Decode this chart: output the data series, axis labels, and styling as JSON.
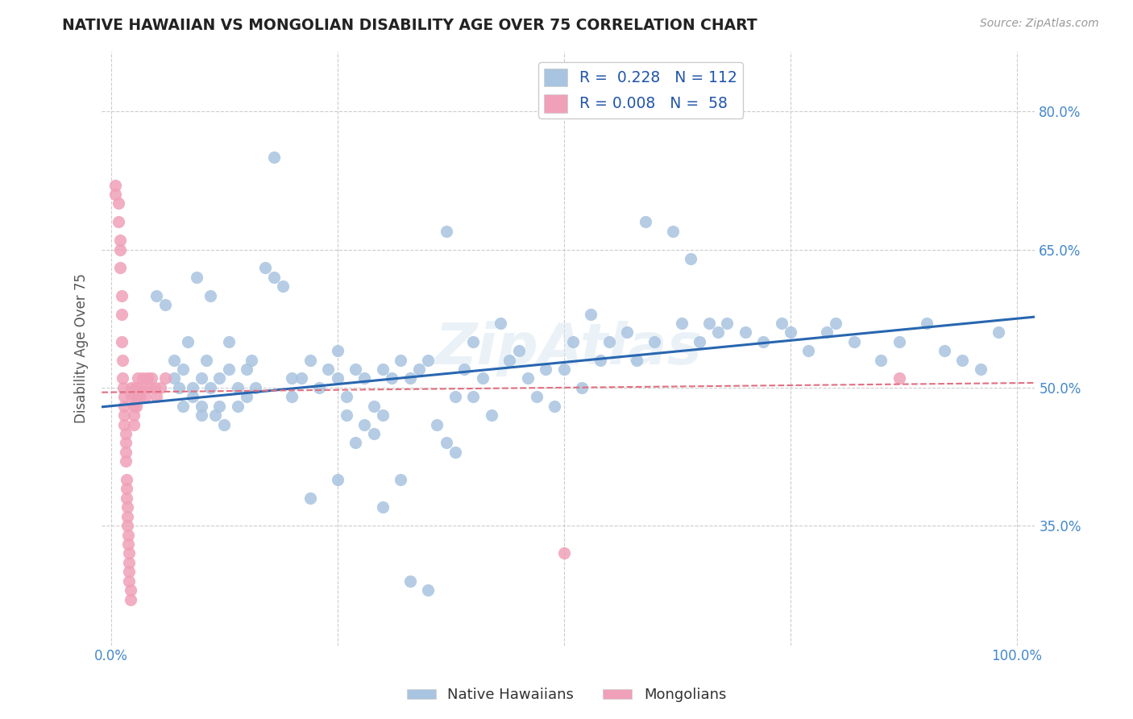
{
  "title": "NATIVE HAWAIIAN VS MONGOLIAN DISABILITY AGE OVER 75 CORRELATION CHART",
  "source": "Source: ZipAtlas.com",
  "ylabel": "Disability Age Over 75",
  "xlim": [
    -0.01,
    1.02
  ],
  "ylim": [
    0.22,
    0.865
  ],
  "x_ticks": [
    0.0,
    0.25,
    0.5,
    0.75,
    1.0
  ],
  "x_tick_labels": [
    "0.0%",
    "",
    "",
    "",
    "100.0%"
  ],
  "y_ticks": [
    0.35,
    0.5,
    0.65,
    0.8
  ],
  "y_tick_labels": [
    "35.0%",
    "50.0%",
    "65.0%",
    "80.0%"
  ],
  "native_hawaiian_color": "#a8c4e0",
  "mongolian_color": "#f0a0b8",
  "trendline_nh_color": "#2866b0",
  "trendline_mn_color": "#e07080",
  "watermark": "ZipAtlas",
  "nh_R": 0.228,
  "nh_N": 112,
  "mn_R": 0.008,
  "mn_N": 58,
  "nh_trendline_start": 0.48,
  "nh_trendline_end": 0.575,
  "mn_trendline_start": 0.495,
  "mn_trendline_end": 0.505,
  "nh_x": [
    0.03,
    0.05,
    0.06,
    0.07,
    0.07,
    0.075,
    0.08,
    0.08,
    0.085,
    0.09,
    0.09,
    0.095,
    0.1,
    0.1,
    0.1,
    0.105,
    0.11,
    0.11,
    0.115,
    0.12,
    0.12,
    0.125,
    0.13,
    0.13,
    0.14,
    0.14,
    0.15,
    0.15,
    0.155,
    0.16,
    0.17,
    0.18,
    0.18,
    0.19,
    0.2,
    0.2,
    0.21,
    0.22,
    0.23,
    0.24,
    0.25,
    0.25,
    0.26,
    0.27,
    0.28,
    0.29,
    0.3,
    0.3,
    0.31,
    0.32,
    0.33,
    0.34,
    0.35,
    0.36,
    0.37,
    0.38,
    0.39,
    0.4,
    0.4,
    0.41,
    0.42,
    0.43,
    0.44,
    0.45,
    0.46,
    0.47,
    0.48,
    0.49,
    0.5,
    0.51,
    0.52,
    0.53,
    0.54,
    0.55,
    0.57,
    0.58,
    0.59,
    0.6,
    0.62,
    0.63,
    0.64,
    0.65,
    0.66,
    0.67,
    0.68,
    0.7,
    0.72,
    0.74,
    0.75,
    0.77,
    0.79,
    0.8,
    0.82,
    0.85,
    0.87,
    0.9,
    0.92,
    0.94,
    0.96,
    0.98,
    0.22,
    0.25,
    0.27,
    0.29,
    0.3,
    0.32,
    0.33,
    0.35,
    0.37,
    0.38,
    0.26,
    0.28
  ],
  "nh_y": [
    0.49,
    0.6,
    0.59,
    0.51,
    0.53,
    0.5,
    0.48,
    0.52,
    0.55,
    0.5,
    0.49,
    0.62,
    0.51,
    0.48,
    0.47,
    0.53,
    0.6,
    0.5,
    0.47,
    0.51,
    0.48,
    0.46,
    0.52,
    0.55,
    0.5,
    0.48,
    0.52,
    0.49,
    0.53,
    0.5,
    0.63,
    0.75,
    0.62,
    0.61,
    0.51,
    0.49,
    0.51,
    0.53,
    0.5,
    0.52,
    0.54,
    0.51,
    0.49,
    0.52,
    0.51,
    0.48,
    0.52,
    0.47,
    0.51,
    0.53,
    0.51,
    0.52,
    0.53,
    0.46,
    0.67,
    0.49,
    0.52,
    0.55,
    0.49,
    0.51,
    0.47,
    0.57,
    0.53,
    0.54,
    0.51,
    0.49,
    0.52,
    0.48,
    0.52,
    0.55,
    0.5,
    0.58,
    0.53,
    0.55,
    0.56,
    0.53,
    0.68,
    0.55,
    0.67,
    0.57,
    0.64,
    0.55,
    0.57,
    0.56,
    0.57,
    0.56,
    0.55,
    0.57,
    0.56,
    0.54,
    0.56,
    0.57,
    0.55,
    0.53,
    0.55,
    0.57,
    0.54,
    0.53,
    0.52,
    0.56,
    0.38,
    0.4,
    0.44,
    0.45,
    0.37,
    0.4,
    0.29,
    0.28,
    0.44,
    0.43,
    0.47,
    0.46
  ],
  "mn_x": [
    0.005,
    0.005,
    0.008,
    0.008,
    0.01,
    0.01,
    0.01,
    0.012,
    0.012,
    0.012,
    0.013,
    0.013,
    0.014,
    0.015,
    0.015,
    0.015,
    0.015,
    0.016,
    0.016,
    0.016,
    0.016,
    0.017,
    0.017,
    0.017,
    0.018,
    0.018,
    0.018,
    0.019,
    0.019,
    0.02,
    0.02,
    0.02,
    0.02,
    0.022,
    0.022,
    0.023,
    0.023,
    0.025,
    0.025,
    0.025,
    0.027,
    0.027,
    0.028,
    0.03,
    0.03,
    0.032,
    0.035,
    0.035,
    0.038,
    0.04,
    0.042,
    0.045,
    0.048,
    0.05,
    0.055,
    0.06,
    0.5,
    0.87
  ],
  "mn_y": [
    0.72,
    0.71,
    0.7,
    0.68,
    0.66,
    0.65,
    0.63,
    0.6,
    0.58,
    0.55,
    0.53,
    0.51,
    0.5,
    0.49,
    0.48,
    0.47,
    0.46,
    0.45,
    0.44,
    0.43,
    0.42,
    0.4,
    0.39,
    0.38,
    0.37,
    0.36,
    0.35,
    0.34,
    0.33,
    0.32,
    0.31,
    0.3,
    0.29,
    0.28,
    0.27,
    0.5,
    0.49,
    0.48,
    0.47,
    0.46,
    0.5,
    0.49,
    0.48,
    0.51,
    0.5,
    0.49,
    0.51,
    0.5,
    0.49,
    0.51,
    0.5,
    0.51,
    0.5,
    0.49,
    0.5,
    0.51,
    0.32,
    0.51
  ]
}
